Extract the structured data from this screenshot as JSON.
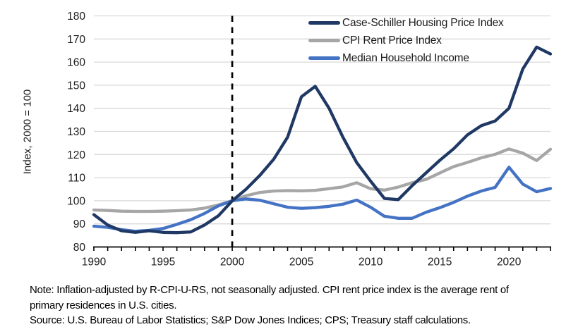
{
  "figure": {
    "ylabel": "Index, 2000 = 100",
    "note": "Note: Inflation-adjusted by R-CPI-U-RS, not seasonally adjusted. CPI rent price index is the average rent of primary residences in U.S. cities.",
    "source": "Source: U.S. Bureau of Labor Statistics; S&P Dow Jones Indices; CPS; Treasury staff calculations."
  },
  "colors": {
    "gridline": "#d9d9d9",
    "axis": "#000000",
    "tick_text": "#1a1a1a",
    "vline": "#000000",
    "background": "#ffffff"
  },
  "chart_data": {
    "type": "line",
    "title": "",
    "xlabel": "",
    "ylabel": "Index, 2000 = 100",
    "xlim": [
      1990,
      2023
    ],
    "ylim": [
      80,
      180
    ],
    "ytick_step": 10,
    "xticks": [
      1990,
      1995,
      2000,
      2005,
      2010,
      2015,
      2020
    ],
    "minor_xtick_step": 1,
    "grid": "horizontal",
    "vline_x": 2000,
    "vline_style": "dashed",
    "legend_position": "top-right-inside",
    "x": [
      1990,
      1991,
      1992,
      1993,
      1994,
      1995,
      1996,
      1997,
      1998,
      1999,
      2000,
      2001,
      2002,
      2003,
      2004,
      2005,
      2006,
      2007,
      2008,
      2009,
      2010,
      2011,
      2012,
      2013,
      2014,
      2015,
      2016,
      2017,
      2018,
      2019,
      2020,
      2021,
      2022,
      2023
    ],
    "series": [
      {
        "name": "Case-Schiller Housing Price Index",
        "color": "#1f3864",
        "zorder": 3,
        "values": [
          94,
          89.5,
          87,
          86.3,
          87,
          86.3,
          86.2,
          86.5,
          89.5,
          93.5,
          100,
          105,
          111,
          118,
          127.5,
          145,
          149.5,
          140,
          127.5,
          116.5,
          108.5,
          101,
          100.5,
          106.5,
          112,
          117.5,
          122.5,
          128.5,
          132.5,
          134.5,
          140,
          157,
          166.5,
          163.5
        ]
      },
      {
        "name": "CPI Rent Price Index",
        "color": "#a6a6a6",
        "zorder": 1,
        "values": [
          96,
          95.8,
          95.5,
          95.4,
          95.4,
          95.5,
          95.7,
          96,
          96.8,
          98.2,
          100,
          102.2,
          103.6,
          104.2,
          104.4,
          104.3,
          104.5,
          105.2,
          106,
          107.8,
          105.2,
          104.6,
          105.9,
          107.8,
          109.2,
          112,
          114.8,
          116.6,
          118.6,
          120.1,
          122.4,
          120.6,
          117.4,
          122.3
        ]
      },
      {
        "name": "Median Household Income",
        "color": "#4472c4",
        "zorder": 2,
        "values": [
          89,
          88.5,
          87.5,
          86.8,
          87.2,
          88,
          89.8,
          91.8,
          94.5,
          97.8,
          100,
          100.8,
          100.2,
          98.7,
          97.2,
          96.7,
          97,
          97.6,
          98.5,
          100.3,
          97.2,
          93.3,
          92.4,
          92.4,
          95,
          97,
          99.3,
          102,
          104.2,
          105.8,
          114.5,
          107.2,
          103.9,
          105.3
        ]
      }
    ]
  }
}
